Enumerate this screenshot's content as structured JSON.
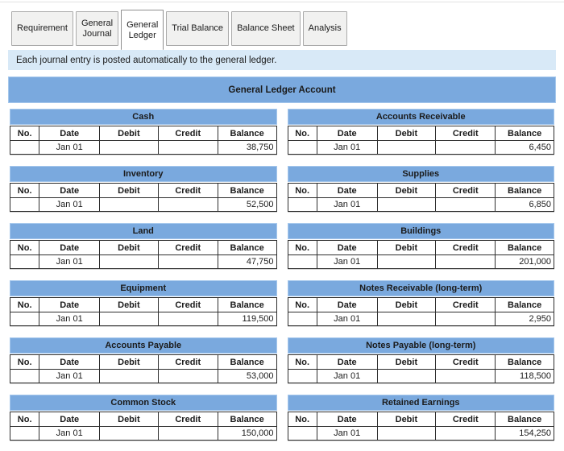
{
  "colors": {
    "header_blue": "#7aa9de",
    "info_banner_blue": "#d8e9f7",
    "table_border": "#2e2e2e"
  },
  "tabs": [
    {
      "label": "Requirement",
      "active": false
    },
    {
      "label": "General\nJournal",
      "active": false
    },
    {
      "label": "General\nLedger",
      "active": true
    },
    {
      "label": "Trial Balance",
      "active": false
    },
    {
      "label": "Balance Sheet",
      "active": false
    },
    {
      "label": "Analysis",
      "active": false
    }
  ],
  "info_banner": {
    "text": "Each journal entry is posted automatically to the general ledger."
  },
  "section": {
    "title": "General Ledger Account"
  },
  "ledger": {
    "columns": [
      "No.",
      "Date",
      "Debit",
      "Credit",
      "Balance"
    ],
    "accounts": [
      {
        "name": "Cash",
        "rows": [
          {
            "no": "",
            "date": "Jan 01",
            "debit": "",
            "credit": "",
            "balance": "38,750"
          }
        ]
      },
      {
        "name": "Accounts Receivable",
        "rows": [
          {
            "no": "",
            "date": "Jan 01",
            "debit": "",
            "credit": "",
            "balance": "6,450"
          }
        ]
      },
      {
        "name": "Inventory",
        "rows": [
          {
            "no": "",
            "date": "Jan 01",
            "debit": "",
            "credit": "",
            "balance": "52,500"
          }
        ]
      },
      {
        "name": "Supplies",
        "rows": [
          {
            "no": "",
            "date": "Jan 01",
            "debit": "",
            "credit": "",
            "balance": "6,850"
          }
        ]
      },
      {
        "name": "Land",
        "rows": [
          {
            "no": "",
            "date": "Jan 01",
            "debit": "",
            "credit": "",
            "balance": "47,750"
          }
        ]
      },
      {
        "name": "Buildings",
        "rows": [
          {
            "no": "",
            "date": "Jan 01",
            "debit": "",
            "credit": "",
            "balance": "201,000"
          }
        ]
      },
      {
        "name": "Equipment",
        "rows": [
          {
            "no": "",
            "date": "Jan 01",
            "debit": "",
            "credit": "",
            "balance": "119,500"
          }
        ]
      },
      {
        "name": "Notes Receivable (long-term)",
        "rows": [
          {
            "no": "",
            "date": "Jan 01",
            "debit": "",
            "credit": "",
            "balance": "2,950"
          }
        ]
      },
      {
        "name": "Accounts Payable",
        "rows": [
          {
            "no": "",
            "date": "Jan 01",
            "debit": "",
            "credit": "",
            "balance": "53,000"
          }
        ]
      },
      {
        "name": "Notes Payable (long-term)",
        "rows": [
          {
            "no": "",
            "date": "Jan 01",
            "debit": "",
            "credit": "",
            "balance": "118,500"
          }
        ]
      },
      {
        "name": "Common Stock",
        "rows": [
          {
            "no": "",
            "date": "Jan 01",
            "debit": "",
            "credit": "",
            "balance": "150,000"
          }
        ]
      },
      {
        "name": "Retained Earnings",
        "rows": [
          {
            "no": "",
            "date": "Jan 01",
            "debit": "",
            "credit": "",
            "balance": "154,250"
          }
        ]
      }
    ]
  }
}
